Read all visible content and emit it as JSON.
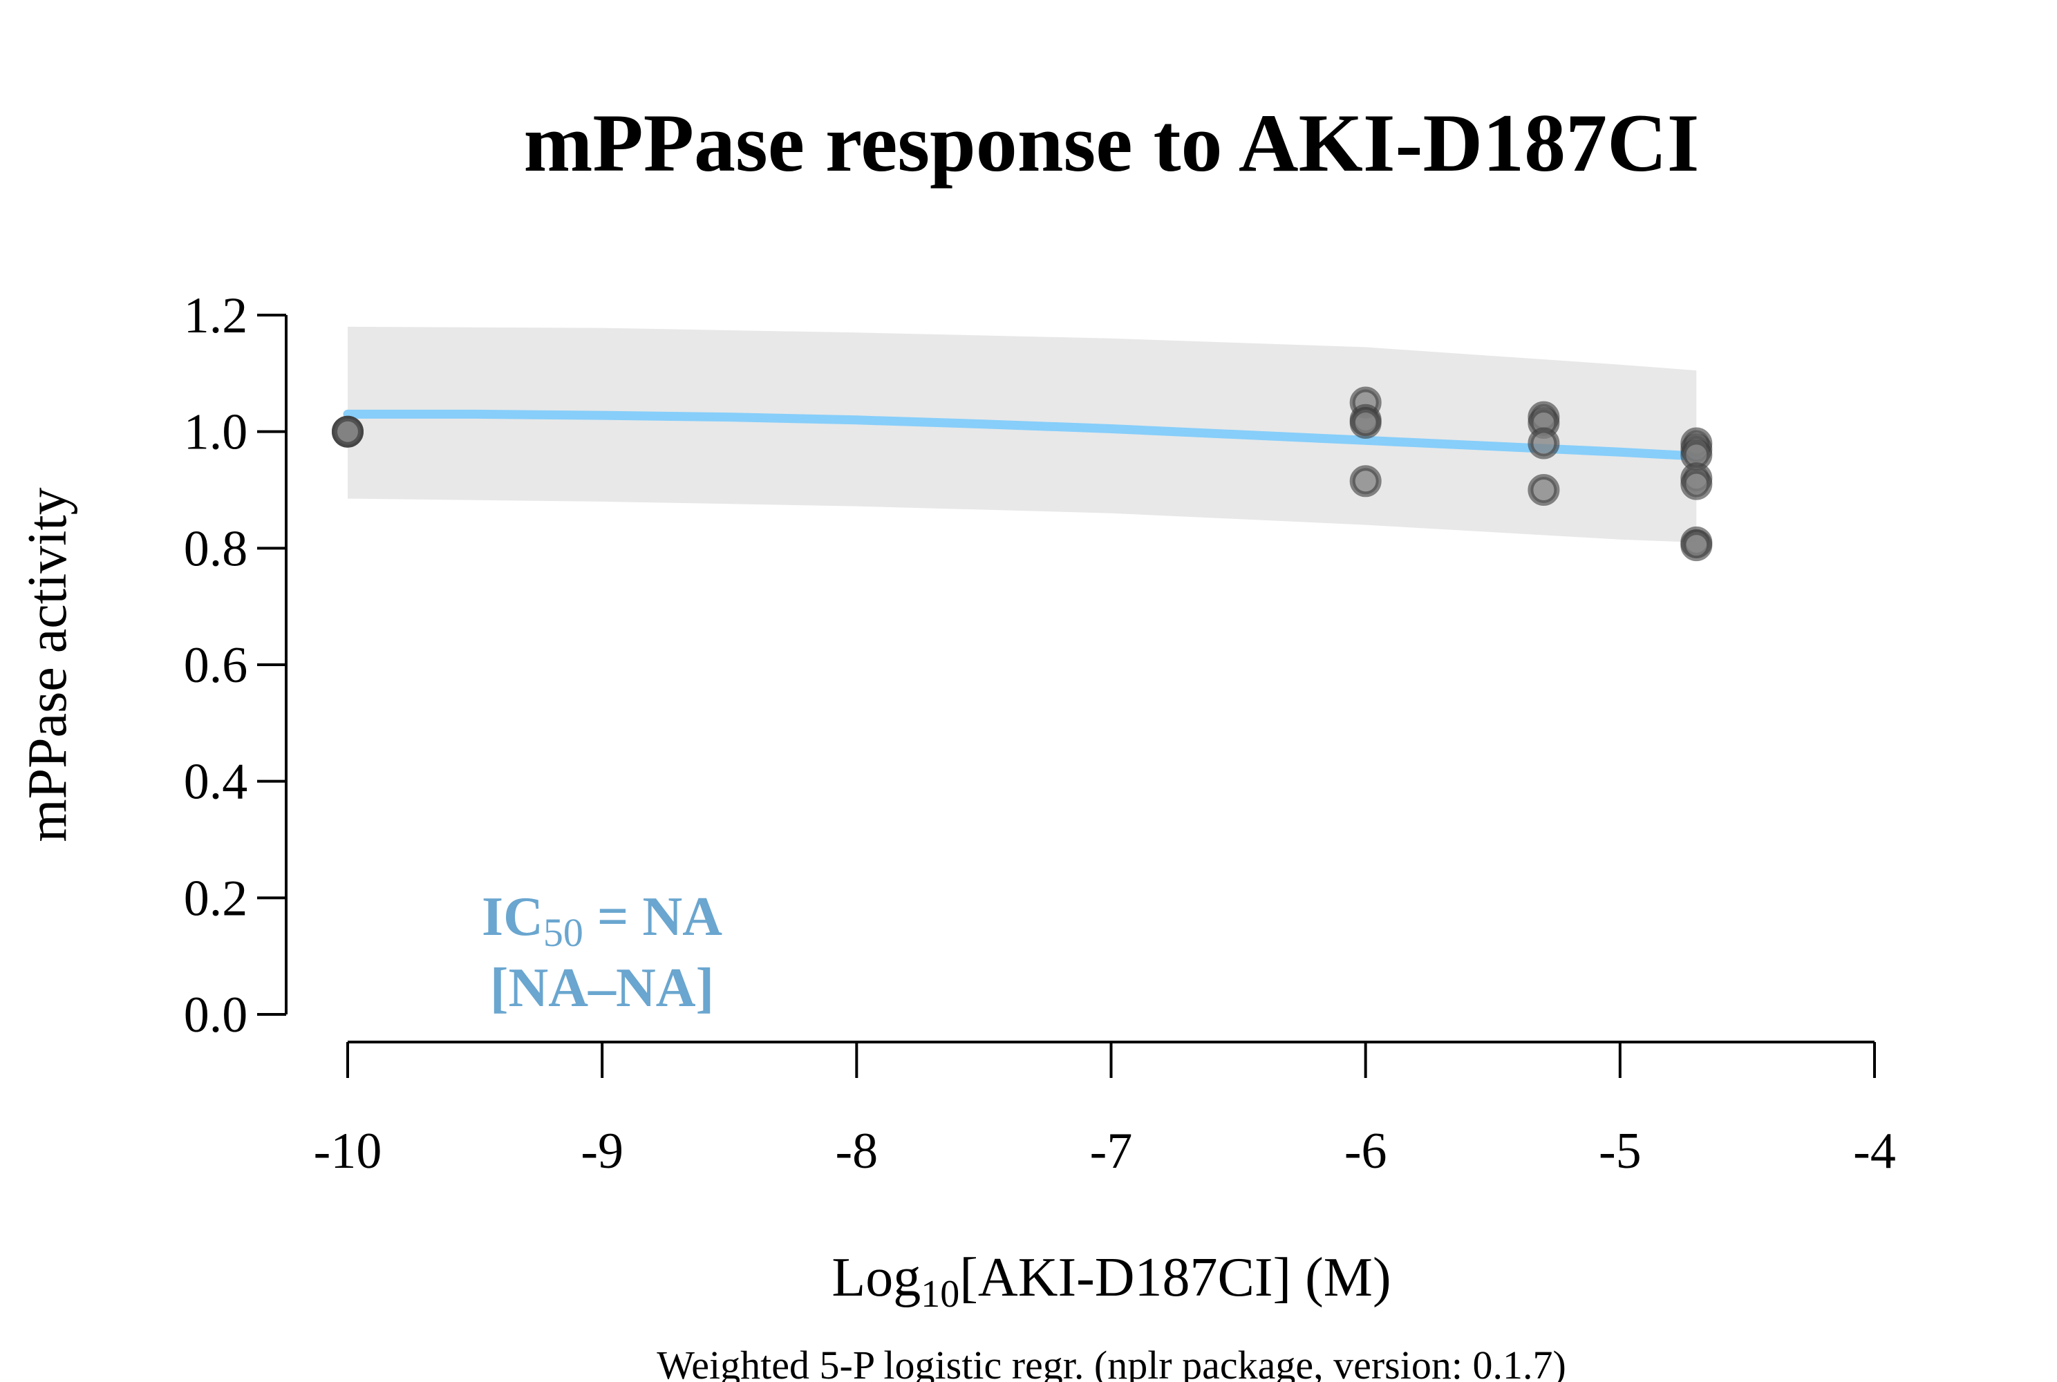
{
  "chart_data": {
    "type": "scatter",
    "title": "mPPase response to AKI-D187CI",
    "xlabel": {
      "prefix": "Log",
      "sub": "10",
      "suffix": "[AKI-D187CI] (M)"
    },
    "ylabel": "mPPase activity",
    "subtitle": "Weighted 5-P logistic regr. (nplr package, version: 0.1.7)",
    "annotation": {
      "line1_prefix": "IC",
      "line1_sub": "50",
      "line1_suffix": " = NA",
      "line2": "[NA–NA]"
    },
    "xlim": [
      -10,
      -4
    ],
    "ylim": [
      0,
      1.2
    ],
    "xticks": [
      -10,
      -9,
      -8,
      -7,
      -6,
      -5,
      -4
    ],
    "xtick_labels": [
      "-10",
      "-9",
      "-8",
      "-7",
      "-6",
      "-5",
      "-4"
    ],
    "yticks": [
      0,
      0.2,
      0.4,
      0.6,
      0.8,
      1.0,
      1.2
    ],
    "ytick_labels": [
      "0.0",
      "0.2",
      "0.4",
      "0.6",
      "0.8",
      "1.0",
      "1.2"
    ],
    "grid": false,
    "points": [
      {
        "x": -10,
        "y": 1.0
      },
      {
        "x": -10,
        "y": 1.0
      },
      {
        "x": -10,
        "y": 1.0
      },
      {
        "x": -6,
        "y": 1.05
      },
      {
        "x": -6,
        "y": 1.02
      },
      {
        "x": -6,
        "y": 1.015
      },
      {
        "x": -6,
        "y": 0.915
      },
      {
        "x": -5.3,
        "y": 1.025
      },
      {
        "x": -5.3,
        "y": 1.015
      },
      {
        "x": -5.3,
        "y": 0.98
      },
      {
        "x": -5.3,
        "y": 0.9
      },
      {
        "x": -4.7,
        "y": 0.98
      },
      {
        "x": -4.7,
        "y": 0.97
      },
      {
        "x": -4.7,
        "y": 0.96
      },
      {
        "x": -4.7,
        "y": 0.92
      },
      {
        "x": -4.7,
        "y": 0.91
      },
      {
        "x": -4.7,
        "y": 0.81
      },
      {
        "x": -4.7,
        "y": 0.805
      }
    ],
    "fit_curve": {
      "x": [
        -10,
        -9.5,
        -9,
        -8.5,
        -8,
        -7.5,
        -7,
        -6.5,
        -6,
        -5.5,
        -5,
        -4.7
      ],
      "y": [
        1.03,
        1.03,
        1.028,
        1.025,
        1.02,
        1.013,
        1.005,
        0.995,
        0.985,
        0.975,
        0.965,
        0.958
      ]
    },
    "confidence_band": {
      "x": [
        -10,
        -9,
        -8,
        -7,
        -6,
        -5,
        -4.7
      ],
      "upper": [
        1.18,
        1.178,
        1.17,
        1.16,
        1.145,
        1.115,
        1.105
      ],
      "lower": [
        0.885,
        0.88,
        0.872,
        0.86,
        0.84,
        0.815,
        0.81
      ]
    },
    "colors": {
      "fit": "#87cefa",
      "band": "#e8e8e8",
      "point_fill": "#808080",
      "point_stroke": "#3a3a3a",
      "annotation": "#6aa6cf"
    }
  }
}
